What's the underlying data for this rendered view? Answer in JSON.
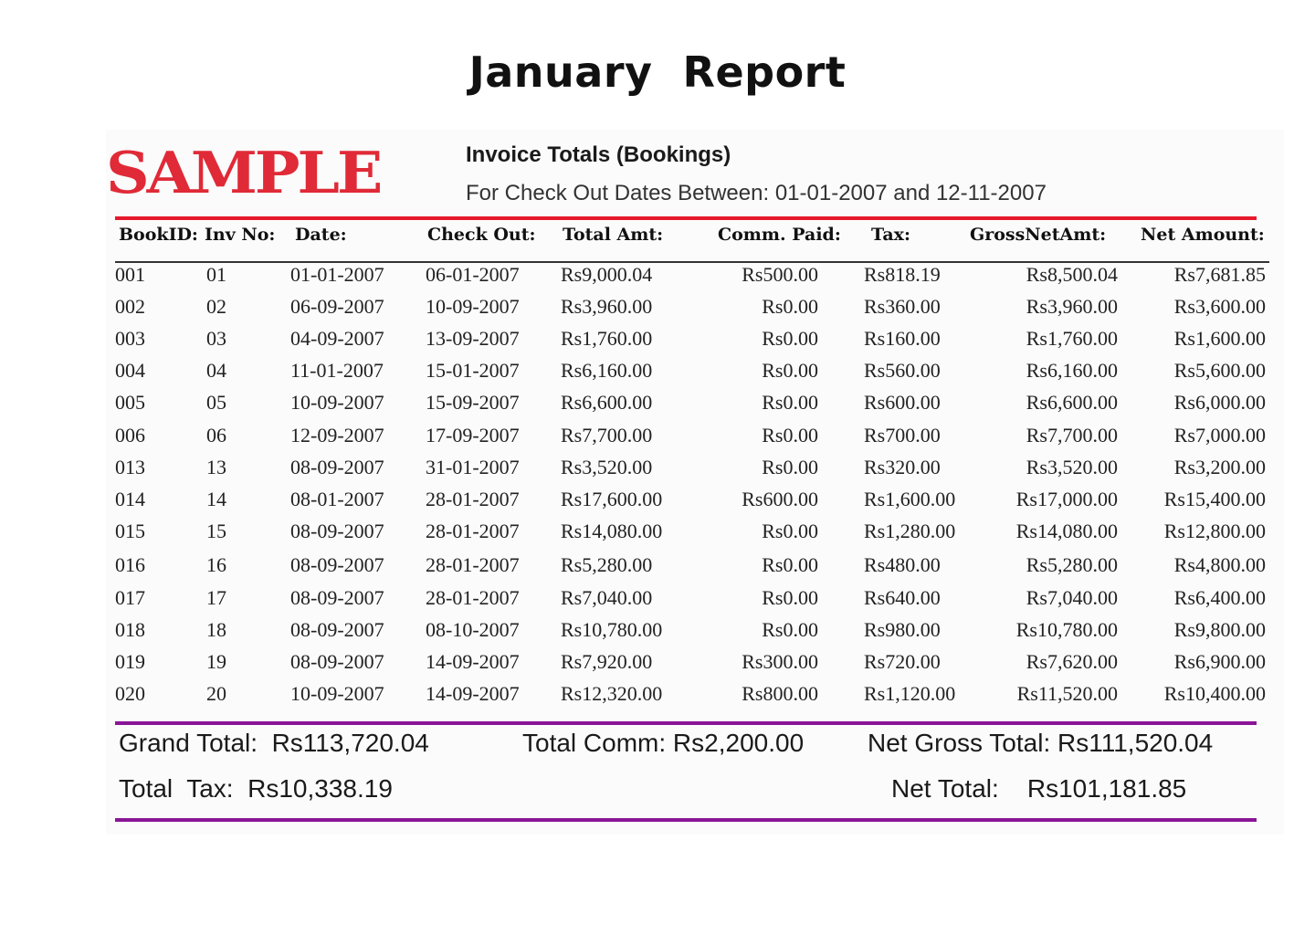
{
  "page": {
    "title": "January  Report"
  },
  "report": {
    "stamp_text": "SAMPLE",
    "heading": "Invoice Totals (Bookings)",
    "subheading": "For Check Out Dates Between: 01-01-2007 and 12-11-2007",
    "columns": [
      "BookID:",
      "Inv No:",
      "Date:",
      "Check Out:",
      "Total Amt:",
      "Comm. Paid:",
      "Tax:",
      "GrossNetAmt:",
      "Net Amount:"
    ],
    "rows": [
      [
        "001",
        "01",
        "01-01-2007",
        "06-01-2007",
        "Rs9,000.04",
        "Rs500.00",
        "Rs818.19",
        "Rs8,500.04",
        "Rs7,681.85"
      ],
      [
        "002",
        "02",
        "06-09-2007",
        "10-09-2007",
        "Rs3,960.00",
        "Rs0.00",
        "Rs360.00",
        "Rs3,960.00",
        "Rs3,600.00"
      ],
      [
        "003",
        "03",
        "04-09-2007",
        "13-09-2007",
        "Rs1,760.00",
        "Rs0.00",
        "Rs160.00",
        "Rs1,760.00",
        "Rs1,600.00"
      ],
      [
        "004",
        "04",
        "11-01-2007",
        "15-01-2007",
        "Rs6,160.00",
        "Rs0.00",
        "Rs560.00",
        "Rs6,160.00",
        "Rs5,600.00"
      ],
      [
        "005",
        "05",
        "10-09-2007",
        "15-09-2007",
        "Rs6,600.00",
        "Rs0.00",
        "Rs600.00",
        "Rs6,600.00",
        "Rs6,000.00"
      ],
      [
        "006",
        "06",
        "12-09-2007",
        "17-09-2007",
        "Rs7,700.00",
        "Rs0.00",
        "Rs700.00",
        "Rs7,700.00",
        "Rs7,000.00"
      ],
      [
        "013",
        "13",
        "08-09-2007",
        "31-01-2007",
        "Rs3,520.00",
        "Rs0.00",
        "Rs320.00",
        "Rs3,520.00",
        "Rs3,200.00"
      ],
      [
        "014",
        "14",
        "08-01-2007",
        "28-01-2007",
        "Rs17,600.00",
        "Rs600.00",
        "Rs1,600.00",
        "Rs17,000.00",
        "Rs15,400.00"
      ],
      [
        "015",
        "15",
        "08-09-2007",
        "28-01-2007",
        "Rs14,080.00",
        "Rs0.00",
        "Rs1,280.00",
        "Rs14,080.00",
        "Rs12,800.00"
      ],
      [
        "016",
        "16",
        "08-09-2007",
        "28-01-2007",
        "Rs5,280.00",
        "Rs0.00",
        "Rs480.00",
        "Rs5,280.00",
        "Rs4,800.00"
      ],
      [
        "017",
        "17",
        "08-09-2007",
        "28-01-2007",
        "Rs7,040.00",
        "Rs0.00",
        "Rs640.00",
        "Rs7,040.00",
        "Rs6,400.00"
      ],
      [
        "018",
        "18",
        "08-09-2007",
        "08-10-2007",
        "Rs10,780.00",
        "Rs0.00",
        "Rs980.00",
        "Rs10,780.00",
        "Rs9,800.00"
      ],
      [
        "019",
        "19",
        "08-09-2007",
        "14-09-2007",
        "Rs7,920.00",
        "Rs300.00",
        "Rs720.00",
        "Rs7,620.00",
        "Rs6,900.00"
      ],
      [
        "020",
        "20",
        "10-09-2007",
        "14-09-2007",
        "Rs12,320.00",
        "Rs800.00",
        "Rs1,120.00",
        "Rs11,520.00",
        "Rs10,400.00"
      ]
    ],
    "totals": {
      "grand_total": "Grand Total:  Rs113,720.04",
      "total_comm": "Total Comm: Rs2,200.00",
      "net_gross_total": "Net Gross Total: Rs111,520.04",
      "total_tax": "Total  Tax:  Rs10,338.19",
      "net_total": "Net Total:    Rs101,181.85"
    },
    "colors": {
      "stamp": "#e02a37",
      "rule_red": "#e6192b",
      "rule_purple": "#8a1596"
    }
  }
}
